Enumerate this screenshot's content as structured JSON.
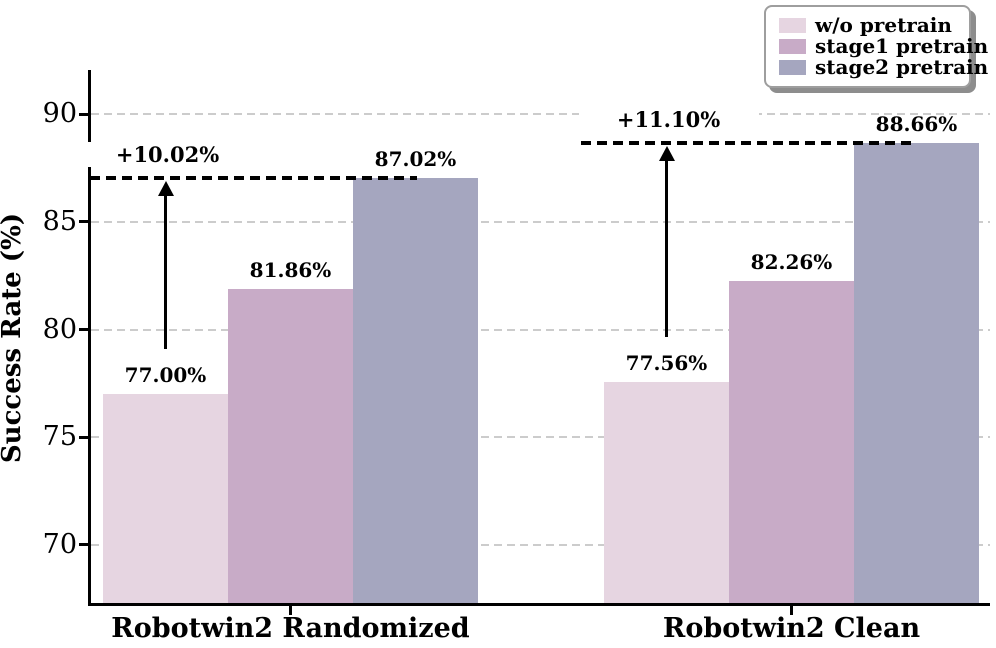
{
  "chart_data": {
    "type": "bar",
    "title": "",
    "ylabel": "Success Rate (%)",
    "xlabel": "",
    "categories": [
      "Robotwin2 Randomized",
      "Robotwin2 Clean"
    ],
    "series": [
      {
        "name": "w/o pretrain",
        "color": "#e6d5e1",
        "values": [
          77.0,
          77.56
        ],
        "labels": [
          "77.00%",
          "77.56%"
        ]
      },
      {
        "name": "stage1 pretrain",
        "color": "#c8abc7",
        "values": [
          81.86,
          82.26
        ],
        "labels": [
          "81.86%",
          "82.26%"
        ]
      },
      {
        "name": "stage2 pretrain",
        "color": "#a5a6bf",
        "values": [
          87.02,
          88.66
        ],
        "labels": [
          "87.02%",
          "88.66%"
        ]
      }
    ],
    "annotations": [
      {
        "text": "+10.02%",
        "group_index": 0,
        "from_value": 77.0,
        "to_value": 87.02
      },
      {
        "text": "+11.10%",
        "group_index": 1,
        "from_value": 77.56,
        "to_value": 88.66
      }
    ],
    "ytick_labels": [
      "70",
      "75",
      "80",
      "85",
      "90"
    ],
    "ytick_values": [
      70,
      75,
      80,
      85,
      90
    ],
    "ylim": [
      67.3,
      92.05
    ],
    "grid": {
      "axis": "y",
      "style": "dashed",
      "color": "#cccccc"
    },
    "legend": {
      "position": "upper-right"
    },
    "axis_color": "#000000",
    "annotation_color": "#000000"
  }
}
